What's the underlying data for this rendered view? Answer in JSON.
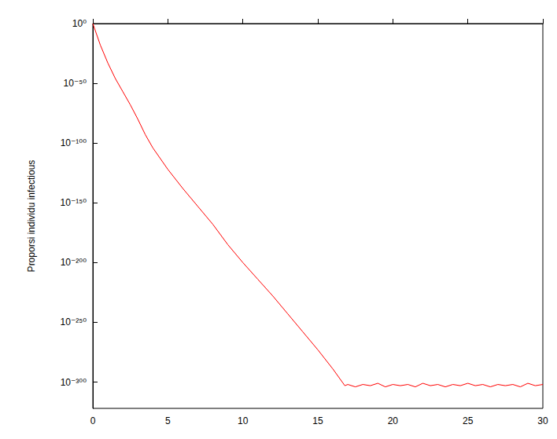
{
  "chart_data": {
    "type": "line",
    "ylabel": "Proporsi individu infectious",
    "log": "y",
    "grid": false,
    "color": "#ff0000",
    "xlim": [
      0,
      30
    ],
    "xticks": [
      0,
      5,
      10,
      15,
      20,
      25,
      30
    ],
    "ylim": [
      1e-322,
      1
    ],
    "yticks": [
      {
        "value": 1e-300,
        "label": "10⁻³⁰⁰"
      },
      {
        "value": 1e-250,
        "label": "10⁻²⁵⁰"
      },
      {
        "value": 1e-200,
        "label": "10⁻²⁰⁰"
      },
      {
        "value": 1e-150,
        "label": "10⁻¹⁵⁰"
      },
      {
        "value": 1e-100,
        "label": "10⁻¹⁰⁰"
      },
      {
        "value": 1e-50,
        "label": "10⁻⁵⁰"
      },
      {
        "value": 1,
        "label": "10⁰"
      }
    ],
    "x": [
      0,
      0.5,
      1,
      1.5,
      2,
      2.5,
      3,
      3.5,
      4,
      4.5,
      5,
      6,
      7,
      8,
      9,
      10,
      11,
      12,
      13,
      14,
      15,
      16,
      16.8,
      17,
      17.5,
      18,
      18.5,
      19,
      19.5,
      20,
      20.5,
      21,
      21.5,
      22,
      22.5,
      23,
      23.5,
      24,
      24.5,
      25,
      25.5,
      26,
      26.5,
      27,
      27.5,
      28,
      28.5,
      29,
      29.5,
      30
    ],
    "values": [
      1,
      1e-18,
      1e-33,
      1e-46,
      1e-57,
      1e-68,
      1e-80,
      1e-93,
      1e-104,
      1e-113,
      1e-122,
      1e-138,
      1e-153,
      1e-168,
      1e-185,
      1e-200,
      1e-214,
      1e-228,
      1e-243,
      1e-258,
      1e-273,
      1e-289,
      1e-303,
      1e-302,
      1e-304,
      1e-302,
      1e-303,
      1e-301,
      1e-304,
      1e-302,
      1e-303,
      1e-302,
      1e-304,
      1e-301,
      1e-303,
      1e-302,
      1e-304,
      1e-302,
      1e-303,
      1e-301,
      1e-303,
      1e-302,
      1e-304,
      1e-302,
      1e-303,
      1e-302,
      1e-304,
      1e-301,
      1e-303,
      1e-302
    ]
  }
}
